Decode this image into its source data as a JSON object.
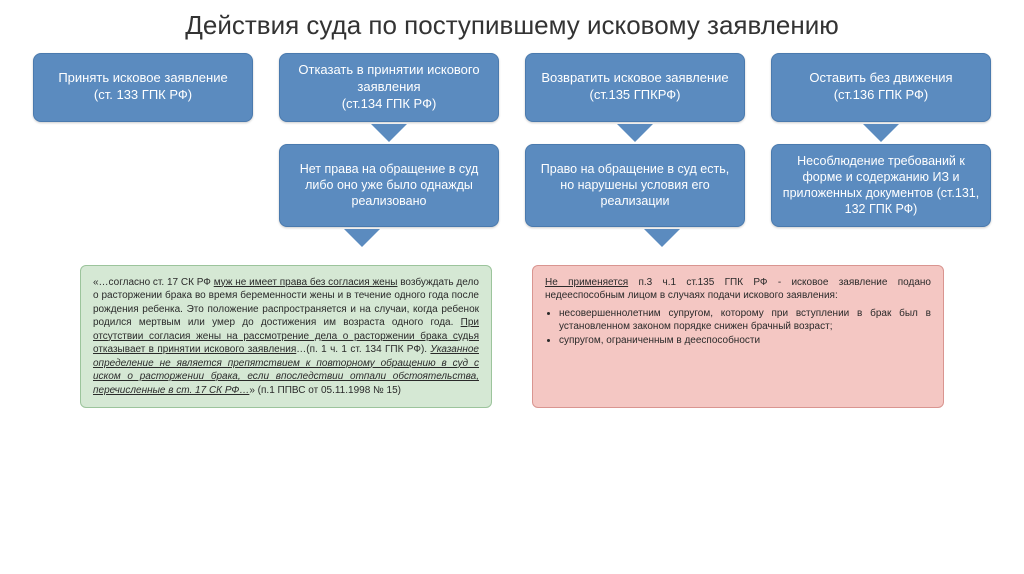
{
  "title": "Действия суда по поступившему исковому заявлению",
  "top_boxes": [
    {
      "text": "Принять исковое заявление\n(ст. 133 ГПК РФ)"
    },
    {
      "text": "Отказать в принятии искового заявления\n(ст.134 ГПК РФ)"
    },
    {
      "text": "Возвратить исковое заявление\n(ст.135 ГПКРФ)"
    },
    {
      "text": "Оставить без движения\n(ст.136 ГПК РФ)"
    }
  ],
  "mid_boxes": [
    {
      "text": "Нет права на обращение в суд либо оно уже было однажды реализовано"
    },
    {
      "text": "Право на обращение в суд есть, но нарушены условия его реализации"
    },
    {
      "text": "Несоблюдение требований к форме и содержанию ИЗ и приложенных документов (ст.131, 132 ГПК РФ)"
    }
  ],
  "green_box": "«…согласно ст. 17 СК РФ муж не имеет права без согласия жены возбуждать дело о расторжении брака во время беременности жены и в течение одного года после рождения ребенка. Это положение распространяется и на случаи, когда ребенок родился мертвым или умер до достижения им возраста одного года. При отсутствии согласия жены на рассмотрение дела о расторжении брака судья отказывает в принятии искового заявления…(п. 1 ч. 1 ст. 134 ГПК РФ). Указанное определение не является препятствием к повторному обращению в суд с иском о расторжении брака, если впоследствии отпали обстоятельства, перечисленные в ст. 17 СК РФ…» (п.1 ППВС от 05.11.1998 № 15)",
  "red_box": {
    "lead": "Не применяется п.3 ч.1 ст.135 ГПК РФ - исковое заявление подано недееспособным лицом в случаях подачи искового заявления:",
    "items": [
      "несовершеннолетним супругом, которому при вступлении в брак был в установленном законом порядке снижен брачный возраст;",
      "супругом, ограниченным в дееспособности"
    ]
  },
  "colors": {
    "box_bg": "#5b8bbf",
    "box_border": "#4a7aae",
    "green_bg": "#d5e8d4",
    "green_border": "#9cc49c",
    "red_bg": "#f4c7c3",
    "red_border": "#d99590",
    "title_color": "#333333",
    "page_bg": "#ffffff"
  }
}
